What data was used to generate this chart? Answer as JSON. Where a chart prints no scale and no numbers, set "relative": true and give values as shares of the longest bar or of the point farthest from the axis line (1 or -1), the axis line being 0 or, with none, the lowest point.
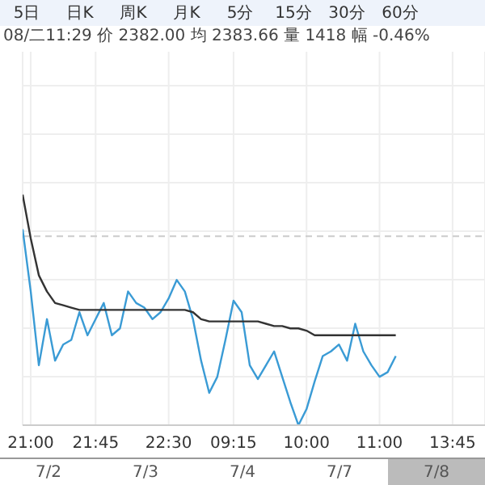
{
  "chart_data": {
    "type": "line",
    "relative": true,
    "categories": [
      null,
      "21:00",
      null,
      null,
      null,
      null,
      null,
      null,
      null,
      "21:45",
      null,
      null,
      null,
      null,
      null,
      null,
      null,
      null,
      "22:30",
      null,
      null,
      null,
      null,
      null,
      null,
      null,
      "09:15",
      null,
      null,
      null,
      null,
      null,
      null,
      null,
      null,
      "10:00",
      null,
      null,
      null,
      null,
      null,
      null,
      null,
      null,
      "11:00",
      null,
      null,
      null,
      null,
      null,
      null,
      null,
      null,
      "13:45",
      null,
      null,
      null,
      null
    ],
    "series": [
      {
        "color": "#3a9bd5",
        "values": [
          0.85,
          0.58,
          0.26,
          0.46,
          0.28,
          0.35,
          0.37,
          0.49,
          0.39,
          0.46,
          0.53,
          0.39,
          0.42,
          0.58,
          0.53,
          0.51,
          0.46,
          0.49,
          0.55,
          0.63,
          0.58,
          0.46,
          0.28,
          0.14,
          0.21,
          0.37,
          0.54,
          0.49,
          0.26,
          0.2,
          0.26,
          0.32,
          0.21,
          0.1,
          0,
          0.07,
          0.19,
          0.3,
          0.32,
          0.35,
          0.28,
          0.44,
          0.32,
          0.26,
          0.21,
          0.23,
          0.3,
          null,
          null,
          null,
          null,
          null,
          null,
          null,
          null,
          null,
          null,
          null
        ]
      },
      {
        "color": "#333333",
        "values": [
          1,
          0.81,
          0.65,
          0.58,
          0.53,
          0.52,
          0.51,
          0.5,
          0.5,
          0.5,
          0.5,
          0.5,
          0.5,
          0.5,
          0.5,
          0.5,
          0.5,
          0.5,
          0.5,
          0.5,
          0.5,
          0.49,
          0.46,
          0.45,
          0.45,
          0.45,
          0.45,
          0.45,
          0.45,
          0.45,
          0.44,
          0.43,
          0.43,
          0.42,
          0.42,
          0.41,
          0.39,
          0.39,
          0.39,
          0.39,
          0.39,
          0.39,
          0.39,
          0.39,
          0.39,
          0.39,
          0.39,
          null,
          null,
          null,
          null,
          null,
          null,
          null,
          null,
          null,
          null,
          null
        ]
      }
    ],
    "ref_lines": [
      {
        "axis": "y",
        "value": 0.82,
        "color": "#cccccc",
        "line_style": "dashed"
      }
    ],
    "annotations": [
      "5日",
      "日K",
      "周K",
      "月K",
      "5分",
      "15分",
      "30分",
      "60分",
      "08/二11:29 价 2382.00 均 2383.66 量 1418 幅 -0.46%",
      "7/2",
      "7/3",
      "7/4",
      "7/7",
      "7/8"
    ],
    "grid": true,
    "legend": false,
    "marker": "none",
    "line_style": "solid"
  }
}
